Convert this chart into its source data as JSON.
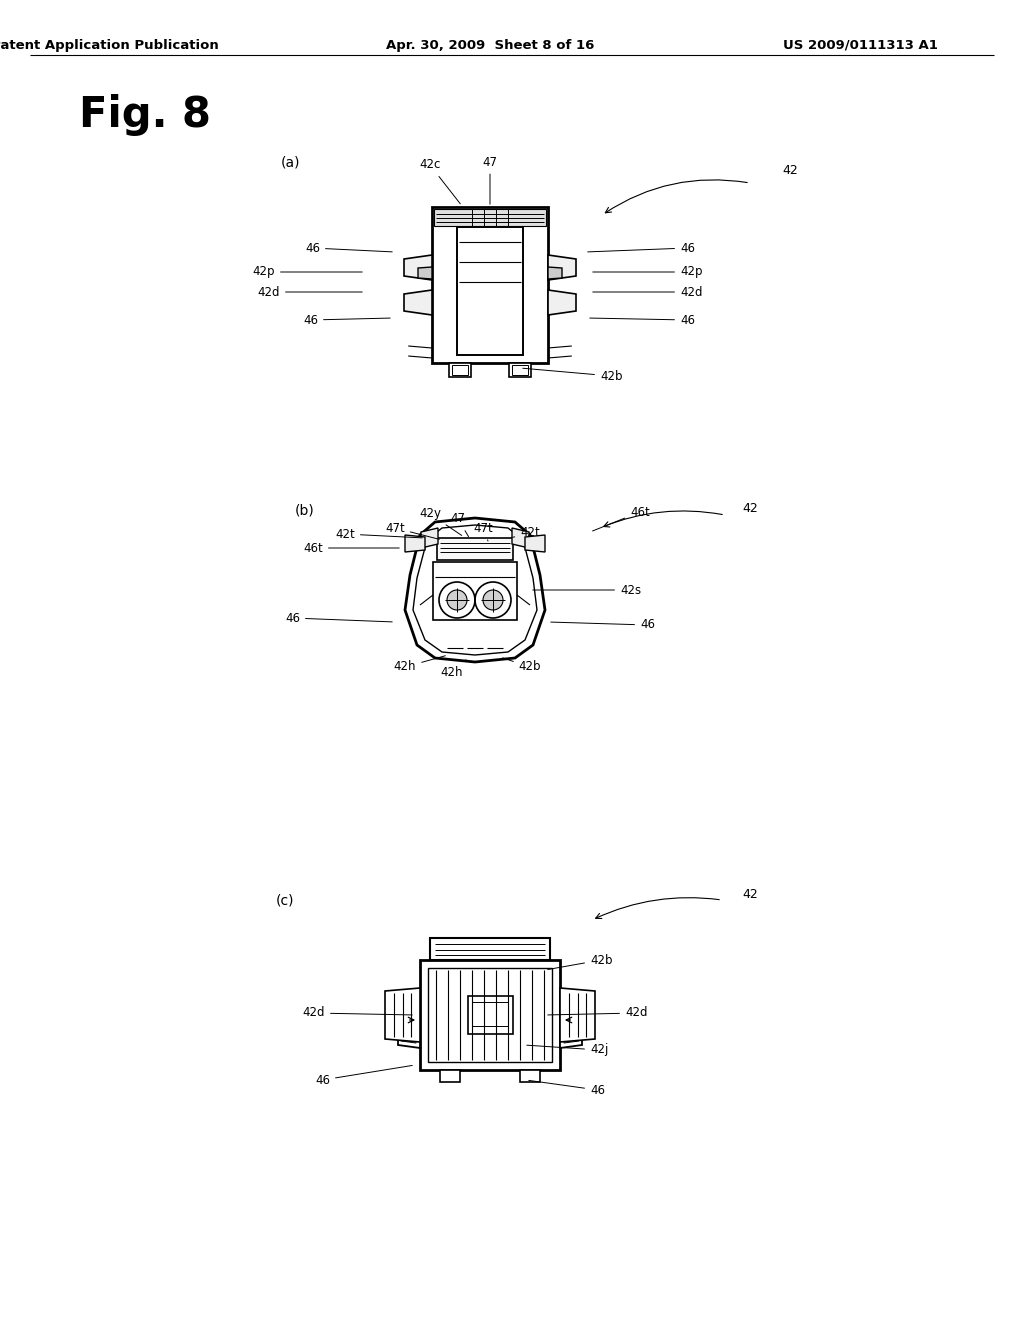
{
  "header_left": "Patent Application Publication",
  "header_center": "Apr. 30, 2009  Sheet 8 of 16",
  "header_right": "US 2009/0111313 A1",
  "background_color": "#ffffff",
  "fig_label": "Fig. 8"
}
